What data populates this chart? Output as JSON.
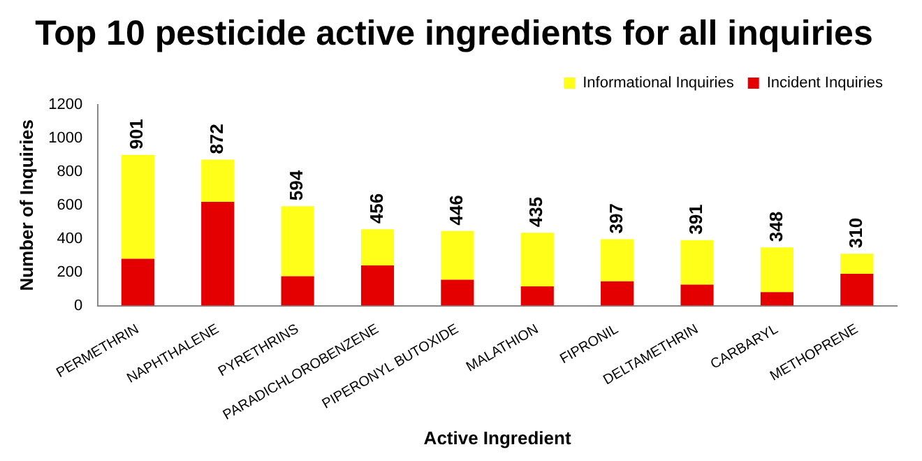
{
  "chart_data": {
    "type": "bar",
    "title": "Top 10 pesticide active ingredients for all inquiries",
    "xlabel": "Active Ingredient",
    "ylabel": "Number of Inquiries",
    "categories": [
      "PERMETHRIN",
      "NAPHTHALENE",
      "PYRETHRINS",
      "PARADICHLOROBENZENE",
      "PIPERONYL BUTOXIDE",
      "MALATHION",
      "FIPRONIL",
      "DELTAMETHRIN",
      "CARBARYL",
      "METHOPRENE"
    ],
    "series": [
      {
        "name": "Incident Inquiries",
        "color": "#e50000",
        "values": [
          280,
          620,
          175,
          240,
          155,
          115,
          145,
          125,
          80,
          190
        ]
      },
      {
        "name": "Informational Inquiries",
        "color": "#ffff1a",
        "values": [
          621,
          252,
          419,
          216,
          291,
          320,
          252,
          266,
          268,
          120
        ]
      }
    ],
    "stacked": true,
    "totals": [
      "901",
      "872",
      "594",
      "456",
      "446",
      "435",
      "397",
      "391",
      "348",
      "310"
    ],
    "ylim": [
      0,
      1200
    ],
    "yticks": [
      0,
      200,
      400,
      600,
      800,
      1000,
      1200
    ],
    "grid": false,
    "legend": "top right"
  }
}
